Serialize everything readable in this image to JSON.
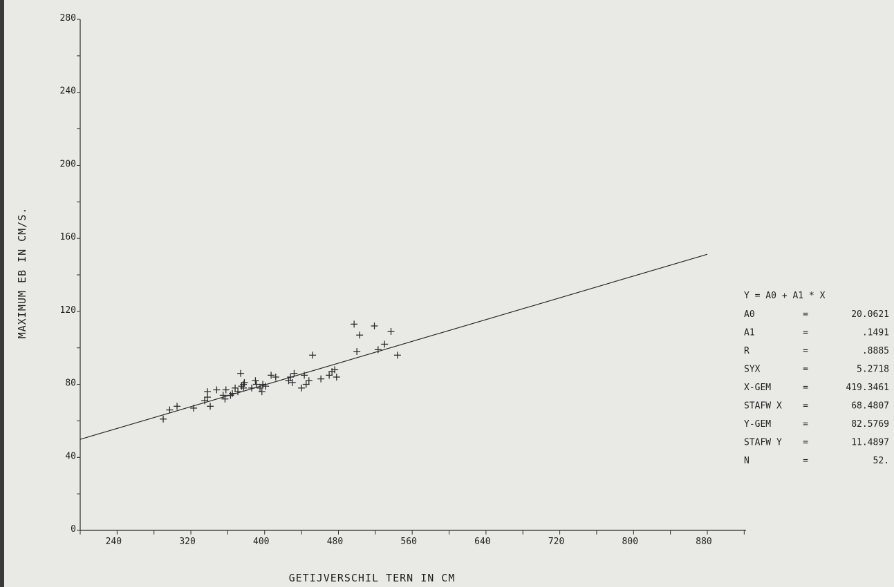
{
  "chart_data": {
    "type": "scatter",
    "xlabel": "GETIJVERSCHIL TERN IN CM",
    "ylabel": "MAXIMUM  EB IN CM/S.",
    "xlim": [
      200,
      880
    ],
    "ylim": [
      0,
      280
    ],
    "x_ticks": [
      240,
      320,
      400,
      480,
      560,
      640,
      720,
      800,
      880
    ],
    "y_ticks": [
      0,
      40,
      80,
      120,
      160,
      200,
      240,
      280
    ],
    "grid": false,
    "regression": {
      "equation": "Y = A0 + A1 * X",
      "a0": 20.0621,
      "a1": 0.1491,
      "x_start": 200,
      "x_end": 880
    },
    "points": [
      [
        290,
        61
      ],
      [
        297,
        66
      ],
      [
        305,
        68
      ],
      [
        323,
        67
      ],
      [
        335,
        71
      ],
      [
        338,
        73
      ],
      [
        338,
        76
      ],
      [
        341,
        68
      ],
      [
        348,
        77
      ],
      [
        355,
        74
      ],
      [
        357,
        72
      ],
      [
        358,
        77
      ],
      [
        363,
        74
      ],
      [
        365,
        75
      ],
      [
        368,
        78
      ],
      [
        371,
        76
      ],
      [
        374,
        86
      ],
      [
        375,
        79
      ],
      [
        377,
        80
      ],
      [
        377,
        78
      ],
      [
        378,
        81
      ],
      [
        386,
        78
      ],
      [
        390,
        82
      ],
      [
        391,
        80
      ],
      [
        395,
        78
      ],
      [
        397,
        76
      ],
      [
        398,
        80
      ],
      [
        401,
        79
      ],
      [
        407,
        85
      ],
      [
        412,
        84
      ],
      [
        426,
        82
      ],
      [
        428,
        84
      ],
      [
        430,
        81
      ],
      [
        432,
        86
      ],
      [
        440,
        78
      ],
      [
        443,
        85
      ],
      [
        445,
        80
      ],
      [
        448,
        82
      ],
      [
        452,
        96
      ],
      [
        461,
        83
      ],
      [
        470,
        85
      ],
      [
        473,
        87
      ],
      [
        476,
        88
      ],
      [
        478,
        84
      ],
      [
        497,
        113
      ],
      [
        500,
        98
      ],
      [
        503,
        107
      ],
      [
        519,
        112
      ],
      [
        523,
        99
      ],
      [
        530,
        102
      ],
      [
        537,
        109
      ],
      [
        544,
        96
      ]
    ]
  },
  "stats": {
    "equation": "Y = A0 + A1 * X",
    "rows": [
      {
        "label": "A0",
        "sep": "=",
        "value": "20.0621"
      },
      {
        "label": "A1",
        "sep": "=",
        "value": ".1491"
      },
      {
        "label": "R",
        "sep": "=",
        "value": ".8885"
      },
      {
        "label": "SYX",
        "sep": "=",
        "value": "5.2718"
      },
      {
        "label": "X-GEM",
        "sep": "=",
        "value": "419.3461"
      },
      {
        "label": "STAFW X",
        "sep": "=",
        "value": "68.4807"
      },
      {
        "label": "Y-GEM",
        "sep": "=",
        "value": "82.5769"
      },
      {
        "label": "STAFW Y",
        "sep": "=",
        "value": "11.4897"
      },
      {
        "label": "N",
        "sep": "=",
        "value": "52."
      }
    ]
  }
}
